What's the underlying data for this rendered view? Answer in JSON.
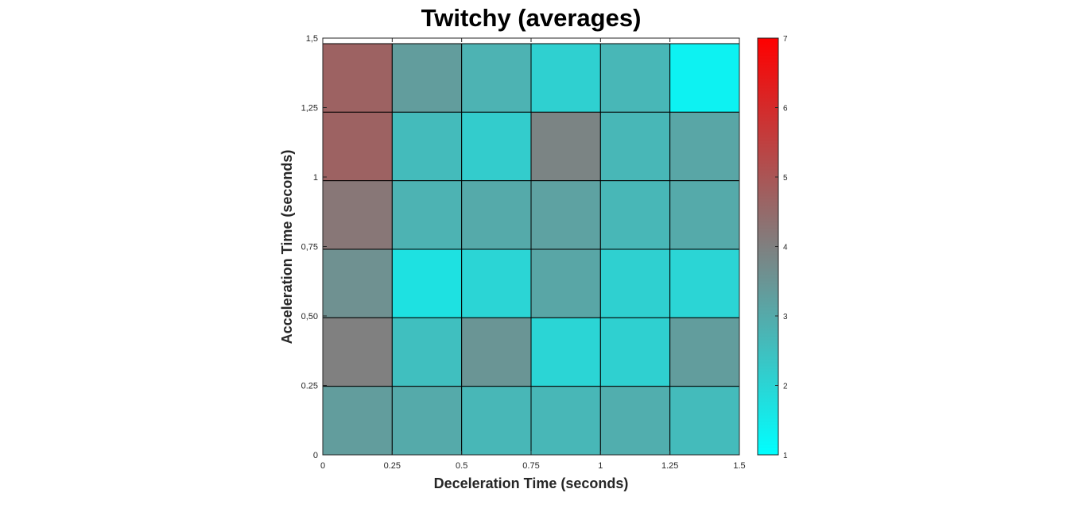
{
  "chart_data": {
    "type": "heatmap",
    "title": "Twitchy (averages)",
    "xlabel": "Deceleration Time (seconds)",
    "ylabel": "Acceleration Time (seconds)",
    "x_ticks": [
      "0",
      "0.25",
      "0.5",
      "0.75",
      "1",
      "1.25",
      "1.5"
    ],
    "y_ticks": [
      "0",
      "0.25",
      "0,50",
      "0,75",
      "1",
      "1,25",
      "1,5"
    ],
    "xlim": [
      0,
      1.5
    ],
    "ylim": [
      0,
      1.5
    ],
    "x_edges": [
      0,
      0.25,
      0.5,
      0.75,
      1,
      1.25,
      1.5
    ],
    "y_edges": [
      0,
      0.25,
      0.5,
      0.75,
      1,
      1.25,
      1.5
    ],
    "values_top_to_bottom": [
      [
        4.7,
        3.3,
        2.8,
        2.1,
        2.7,
        1.3
      ],
      [
        4.7,
        2.6,
        2.2,
        3.9,
        2.7,
        3.1
      ],
      [
        4.2,
        2.8,
        3.0,
        3.2,
        2.7,
        3.0
      ],
      [
        3.6,
        1.7,
        2.0,
        3.1,
        2.1,
        2.0
      ],
      [
        4.0,
        2.5,
        3.5,
        2.0,
        2.1,
        3.3
      ],
      [
        3.3,
        3.0,
        2.7,
        2.7,
        2.9,
        2.6
      ]
    ],
    "colorbar": {
      "min": 1,
      "max": 7,
      "ticks": [
        "1",
        "2",
        "3",
        "4",
        "5",
        "6",
        "7"
      ],
      "low_color": "#00ffff",
      "high_color": "#ff0000"
    },
    "grid": true,
    "cell_border_color": "#000000"
  }
}
